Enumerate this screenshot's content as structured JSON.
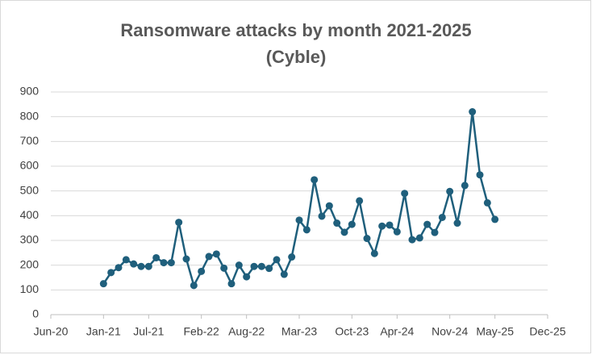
{
  "chart_data": {
    "type": "line",
    "title": "Ransomware attacks by month 2021-2025",
    "subtitle": "(Cyble)",
    "x": [
      "2021-01",
      "2021-02",
      "2021-03",
      "2021-04",
      "2021-05",
      "2021-06",
      "2021-07",
      "2021-08",
      "2021-09",
      "2021-10",
      "2021-11",
      "2021-12",
      "2022-01",
      "2022-02",
      "2022-03",
      "2022-04",
      "2022-05",
      "2022-06",
      "2022-07",
      "2022-08",
      "2022-09",
      "2022-10",
      "2022-11",
      "2022-12",
      "2023-01",
      "2023-02",
      "2023-03",
      "2023-04",
      "2023-05",
      "2023-06",
      "2023-07",
      "2023-08",
      "2023-09",
      "2023-10",
      "2023-11",
      "2023-12",
      "2024-01",
      "2024-02",
      "2024-03",
      "2024-04",
      "2024-05",
      "2024-06",
      "2024-07",
      "2024-08",
      "2024-09",
      "2024-10",
      "2024-11",
      "2024-12",
      "2025-01",
      "2025-02",
      "2025-03",
      "2025-04",
      "2025-05"
    ],
    "series": [
      {
        "name": "Ransomware attacks",
        "color": "#1f5f7c",
        "values": [
          125,
          170,
          190,
          222,
          205,
          195,
          195,
          230,
          210,
          210,
          373,
          225,
          118,
          175,
          235,
          245,
          188,
          125,
          200,
          153,
          195,
          195,
          187,
          222,
          163,
          233,
          382,
          343,
          545,
          398,
          440,
          370,
          333,
          365,
          460,
          308,
          247,
          358,
          362,
          335,
          490,
          303,
          310,
          365,
          332,
          393,
          498,
          370,
          522,
          820,
          565,
          452,
          385
        ]
      }
    ],
    "xlim": [
      "2020-06",
      "2025-12"
    ],
    "xticks": [
      {
        "value": "2020-06",
        "label": "Jun-20"
      },
      {
        "value": "2021-01",
        "label": "Jan-21"
      },
      {
        "value": "2021-07",
        "label": "Jul-21"
      },
      {
        "value": "2022-02",
        "label": "Feb-22"
      },
      {
        "value": "2022-08",
        "label": "Aug-22"
      },
      {
        "value": "2023-03",
        "label": "Mar-23"
      },
      {
        "value": "2023-10",
        "label": "Oct-23"
      },
      {
        "value": "2024-04",
        "label": "Apr-24"
      },
      {
        "value": "2024-11",
        "label": "Nov-24"
      },
      {
        "value": "2025-05",
        "label": "May-25"
      },
      {
        "value": "2025-12",
        "label": "Dec-25"
      }
    ],
    "ylim": [
      0,
      900
    ],
    "yticks": [
      0,
      100,
      200,
      300,
      400,
      500,
      600,
      700,
      800,
      900
    ],
    "grid": true
  }
}
